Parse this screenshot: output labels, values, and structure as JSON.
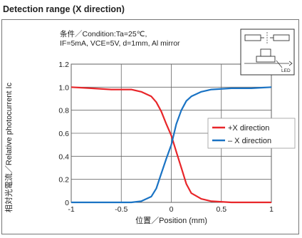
{
  "section_title": "Detection range (X direction)",
  "chart_data": {
    "type": "line",
    "title": "",
    "conditions": [
      "条件／Condition:Ta=25℃,",
      "IF=5mA, VCE=5V, d=1mm, Al mirror"
    ],
    "xlabel": "位置／Position (mm)",
    "ylabel": "相対光電流／Relative photocurrent Ic",
    "xlim": [
      -1,
      1
    ],
    "ylim": [
      0,
      1.2
    ],
    "x_ticks": [
      "-1",
      "-0.5",
      "0",
      "0.5",
      "1"
    ],
    "y_ticks": [
      "0",
      "0.2",
      "0.4",
      "0.6",
      "0.8",
      "1.0",
      "1.2"
    ],
    "grid": true,
    "legend_position": "center-right",
    "series": [
      {
        "name": "+X direction",
        "color": "#e8262a",
        "x": [
          -1.0,
          -0.8,
          -0.6,
          -0.4,
          -0.3,
          -0.2,
          -0.15,
          -0.1,
          -0.05,
          0.0,
          0.05,
          0.1,
          0.15,
          0.2,
          0.3,
          0.4,
          0.6,
          0.8,
          1.0
        ],
        "y": [
          1.0,
          0.99,
          0.98,
          0.98,
          0.96,
          0.92,
          0.87,
          0.79,
          0.68,
          0.58,
          0.44,
          0.3,
          0.16,
          0.08,
          0.03,
          0.01,
          0.0,
          0.0,
          0.0
        ]
      },
      {
        "name": "– X direction",
        "color": "#1a73c4",
        "x": [
          -1.0,
          -0.8,
          -0.6,
          -0.4,
          -0.3,
          -0.2,
          -0.15,
          -0.1,
          -0.05,
          0.0,
          0.05,
          0.1,
          0.15,
          0.2,
          0.3,
          0.4,
          0.6,
          0.8,
          1.0
        ],
        "y": [
          0.0,
          0.0,
          0.0,
          0.0,
          0.01,
          0.05,
          0.12,
          0.25,
          0.38,
          0.5,
          0.68,
          0.8,
          0.88,
          0.92,
          0.96,
          0.98,
          0.99,
          0.99,
          1.0
        ]
      }
    ],
    "inset_label": "LED"
  }
}
